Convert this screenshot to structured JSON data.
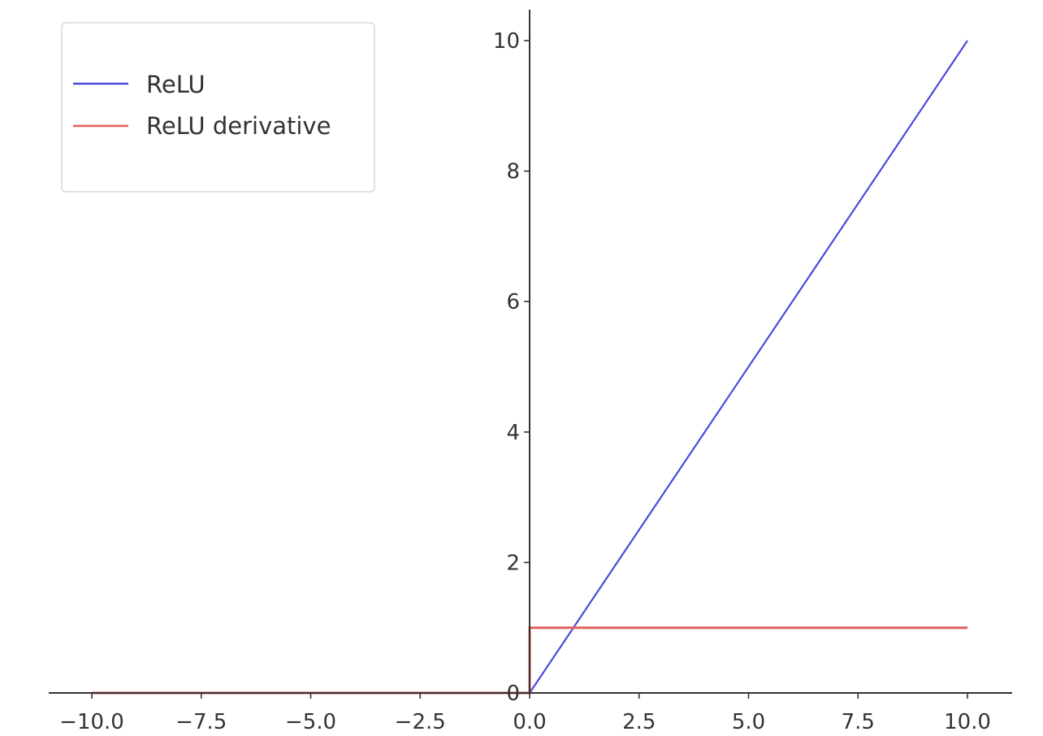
{
  "chart_data": {
    "type": "line",
    "title": "",
    "xlabel": "",
    "ylabel": "",
    "xlim": [
      -11.0,
      11.0
    ],
    "ylim": [
      0,
      10.5
    ],
    "x_ticks": [
      -10.0,
      -7.5,
      -5.0,
      -2.5,
      0.0,
      2.5,
      5.0,
      7.5,
      10.0
    ],
    "x_tick_labels": [
      "−10.0",
      "−7.5",
      "−5.0",
      "−2.5",
      "0.0",
      "2.5",
      "5.0",
      "7.5",
      "10.0"
    ],
    "y_ticks": [
      0,
      2,
      4,
      6,
      8,
      10
    ],
    "y_tick_labels": [
      "0",
      "2",
      "4",
      "6",
      "8",
      "10"
    ],
    "grid": false,
    "legend_position": "top-left",
    "spines": "centered at origin",
    "series": [
      {
        "name": "ReLU",
        "color": "#4a4ae0",
        "points": [
          [
            -10,
            0
          ],
          [
            0,
            0
          ],
          [
            10,
            10
          ]
        ]
      },
      {
        "name": "ReLU derivative",
        "color": "#e0605a",
        "points": [
          [
            -10,
            0
          ],
          [
            0,
            0
          ],
          [
            0,
            1
          ],
          [
            10,
            1
          ]
        ]
      }
    ]
  }
}
